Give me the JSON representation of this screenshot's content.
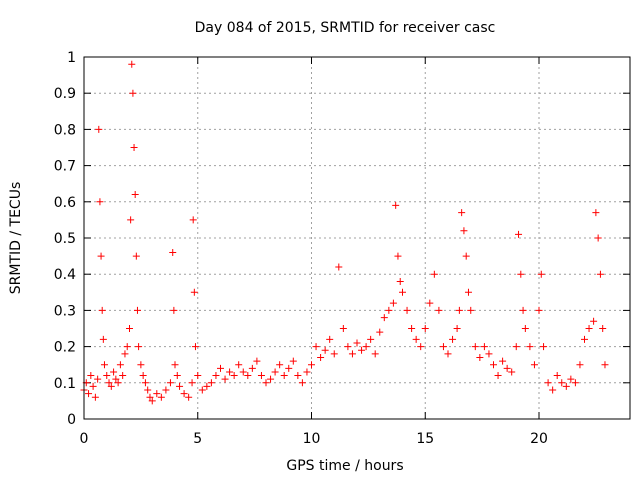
{
  "chart_data": {
    "type": "scatter",
    "title": "Day 084 of 2015, SRMTID for receiver casc",
    "xlabel": "GPS time / hours",
    "ylabel": "SRMTID / TECUs",
    "xlim": [
      0,
      24
    ],
    "ylim": [
      0,
      1
    ],
    "x_ticks": [
      0,
      5,
      10,
      15,
      20
    ],
    "x_tick_labels": [
      "0",
      "5",
      "10",
      "15",
      "20"
    ],
    "y_ticks": [
      0,
      0.1,
      0.2,
      0.3,
      0.4,
      0.5,
      0.6,
      0.7,
      0.8,
      0.9,
      1
    ],
    "y_tick_labels": [
      "0",
      "0.1",
      "0.2",
      "0.3",
      "0.4",
      "0.5",
      "0.6",
      "0.7",
      "0.8",
      "0.9",
      "1"
    ],
    "grid": true,
    "marker": "+",
    "color": "#ff0000",
    "series": [
      {
        "name": "SRMTID",
        "x": [
          0.0,
          0.1,
          0.2,
          0.3,
          0.4,
          0.5,
          0.6,
          0.65,
          0.7,
          0.75,
          0.8,
          0.85,
          0.9,
          1.0,
          1.1,
          1.2,
          1.3,
          1.4,
          1.5,
          1.6,
          1.7,
          1.8,
          1.9,
          2.0,
          2.05,
          2.1,
          2.15,
          2.2,
          2.25,
          2.3,
          2.35,
          2.4,
          2.5,
          2.6,
          2.7,
          2.8,
          2.9,
          3.0,
          3.2,
          3.4,
          3.6,
          3.8,
          3.9,
          3.95,
          4.0,
          4.1,
          4.2,
          4.4,
          4.6,
          4.75,
          4.8,
          4.85,
          4.9,
          5.0,
          5.2,
          5.4,
          5.6,
          5.8,
          6.0,
          6.2,
          6.4,
          6.6,
          6.8,
          7.0,
          7.2,
          7.4,
          7.6,
          7.8,
          8.0,
          8.2,
          8.4,
          8.6,
          8.8,
          9.0,
          9.2,
          9.4,
          9.6,
          9.8,
          10.0,
          10.2,
          10.4,
          10.6,
          10.8,
          11.0,
          11.2,
          11.4,
          11.6,
          11.8,
          12.0,
          12.2,
          12.4,
          12.6,
          12.8,
          13.0,
          13.2,
          13.4,
          13.6,
          13.7,
          13.8,
          13.9,
          14.0,
          14.2,
          14.4,
          14.6,
          14.8,
          15.0,
          15.2,
          15.4,
          15.6,
          15.8,
          16.0,
          16.2,
          16.4,
          16.5,
          16.6,
          16.7,
          16.8,
          16.9,
          17.0,
          17.2,
          17.4,
          17.6,
          17.8,
          18.0,
          18.2,
          18.4,
          18.6,
          18.8,
          19.0,
          19.1,
          19.2,
          19.3,
          19.4,
          19.6,
          19.8,
          20.0,
          20.1,
          20.2,
          20.4,
          20.6,
          20.8,
          21.0,
          21.2,
          21.4,
          21.6,
          21.8,
          22.0,
          22.2,
          22.4,
          22.5,
          22.6,
          22.7,
          22.8,
          22.9
        ],
        "y": [
          0.08,
          0.1,
          0.07,
          0.12,
          0.09,
          0.06,
          0.11,
          0.8,
          0.6,
          0.45,
          0.3,
          0.22,
          0.15,
          0.12,
          0.1,
          0.09,
          0.13,
          0.11,
          0.1,
          0.15,
          0.12,
          0.18,
          0.2,
          0.25,
          0.55,
          0.98,
          0.9,
          0.75,
          0.62,
          0.45,
          0.3,
          0.2,
          0.15,
          0.12,
          0.1,
          0.08,
          0.06,
          0.05,
          0.07,
          0.06,
          0.08,
          0.1,
          0.46,
          0.3,
          0.15,
          0.12,
          0.09,
          0.07,
          0.06,
          0.1,
          0.55,
          0.35,
          0.2,
          0.12,
          0.08,
          0.09,
          0.1,
          0.12,
          0.14,
          0.11,
          0.13,
          0.12,
          0.15,
          0.13,
          0.12,
          0.14,
          0.16,
          0.12,
          0.1,
          0.11,
          0.13,
          0.15,
          0.12,
          0.14,
          0.16,
          0.12,
          0.1,
          0.13,
          0.15,
          0.2,
          0.17,
          0.19,
          0.22,
          0.18,
          0.42,
          0.25,
          0.2,
          0.18,
          0.21,
          0.19,
          0.2,
          0.22,
          0.18,
          0.24,
          0.28,
          0.3,
          0.32,
          0.59,
          0.45,
          0.38,
          0.35,
          0.3,
          0.25,
          0.22,
          0.2,
          0.25,
          0.32,
          0.4,
          0.3,
          0.2,
          0.18,
          0.22,
          0.25,
          0.3,
          0.57,
          0.52,
          0.45,
          0.35,
          0.3,
          0.2,
          0.17,
          0.2,
          0.18,
          0.15,
          0.12,
          0.16,
          0.14,
          0.13,
          0.2,
          0.51,
          0.4,
          0.3,
          0.25,
          0.2,
          0.15,
          0.3,
          0.4,
          0.2,
          0.1,
          0.08,
          0.12,
          0.1,
          0.09,
          0.11,
          0.1,
          0.15,
          0.22,
          0.25,
          0.27,
          0.57,
          0.5,
          0.4,
          0.25,
          0.15
        ]
      }
    ]
  }
}
